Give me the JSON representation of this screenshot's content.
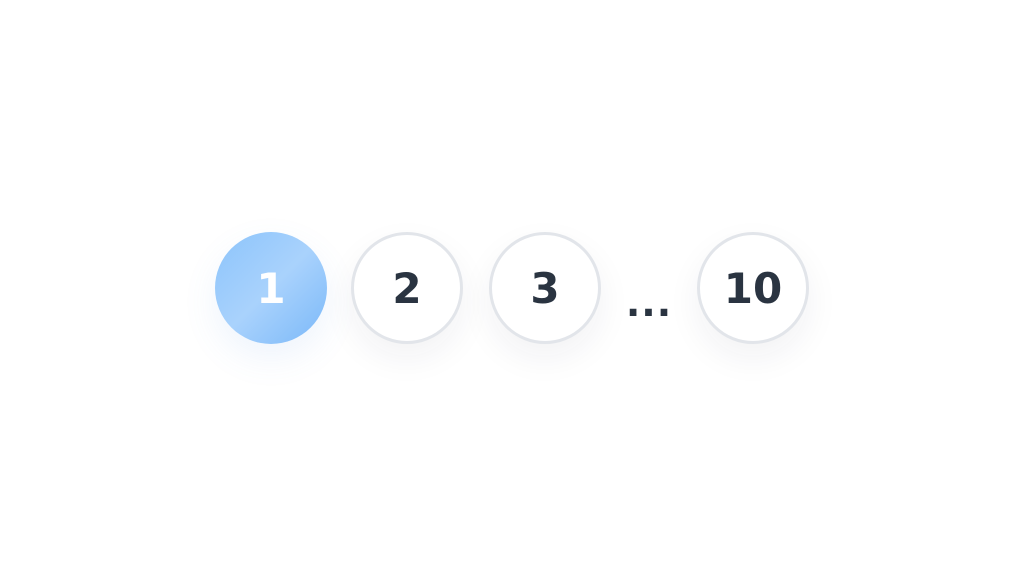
{
  "pagination": {
    "pages": [
      {
        "label": "1",
        "active": true
      },
      {
        "label": "2",
        "active": false
      },
      {
        "label": "3",
        "active": false
      }
    ],
    "ellipsis": "...",
    "last_page": {
      "label": "10",
      "active": false
    },
    "colors": {
      "active_gradient_start": "#8cc4fb",
      "active_gradient_end": "#7ab8f9",
      "text": "#2a3441",
      "border": "#e2e5ea"
    }
  }
}
